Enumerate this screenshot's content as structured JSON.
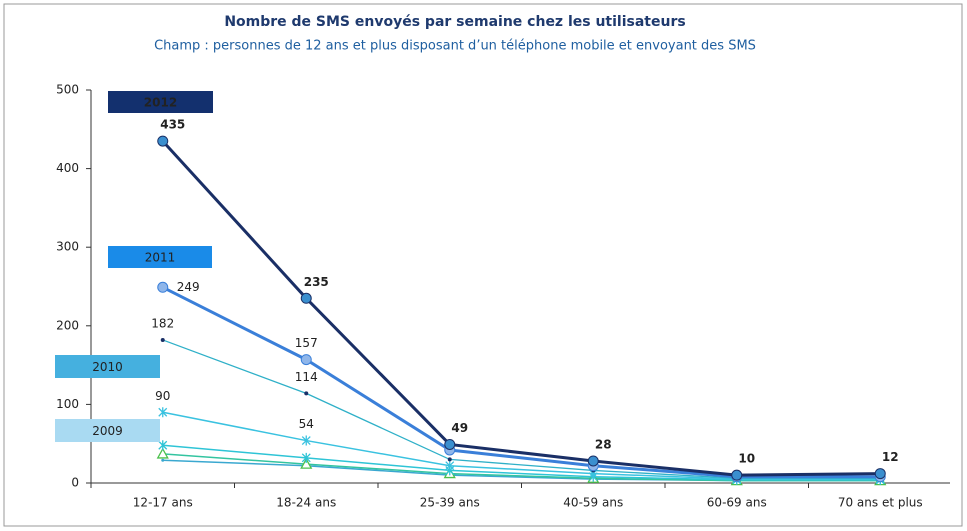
{
  "chart_data": {
    "type": "line",
    "title": "Nombre de SMS envoyés par semaine chez les utilisateurs",
    "subtitle": "Champ : personnes de 12 ans et plus disposant d’un téléphone mobile et envoyant des SMS",
    "categories": [
      "12-17 ans",
      "18-24 ans",
      "25-39 ans",
      "40-59 ans",
      "60-69 ans",
      "70 ans et plus"
    ],
    "ylim": [
      0,
      500
    ],
    "yticks": [
      0,
      100,
      200,
      300,
      400,
      500
    ],
    "series": [
      {
        "name": "2012",
        "color": "#1a2f66",
        "values": [
          435,
          235,
          49,
          28,
          10,
          12
        ],
        "value_labels": [
          "435",
          "235",
          "49",
          "28",
          "10",
          "12"
        ]
      },
      {
        "name": "2011",
        "color": "#3a7fd9",
        "values": [
          249,
          157,
          42,
          22,
          8,
          8
        ],
        "value_labels": [
          "249",
          "157",
          null,
          null,
          null,
          null
        ]
      },
      {
        "name": "2010",
        "color": "#2fb0c8",
        "values": [
          182,
          114,
          30,
          16,
          6,
          6
        ],
        "value_labels": [
          "182",
          "114",
          null,
          null,
          null,
          null
        ]
      },
      {
        "name": "2009",
        "color": "#3ac2e0",
        "values": [
          90,
          54,
          22,
          12,
          5,
          5
        ],
        "value_labels": [
          "90",
          "54",
          null,
          null,
          null,
          null
        ]
      },
      {
        "color": "#2ec4d6",
        "values": [
          48,
          32,
          16,
          8,
          4,
          4
        ]
      },
      {
        "color": "#33c4a0",
        "values": [
          37,
          24,
          12,
          6,
          3,
          3
        ]
      },
      {
        "color": "#3aa8d0",
        "values": [
          29,
          22,
          10,
          5,
          3,
          3
        ]
      }
    ]
  }
}
